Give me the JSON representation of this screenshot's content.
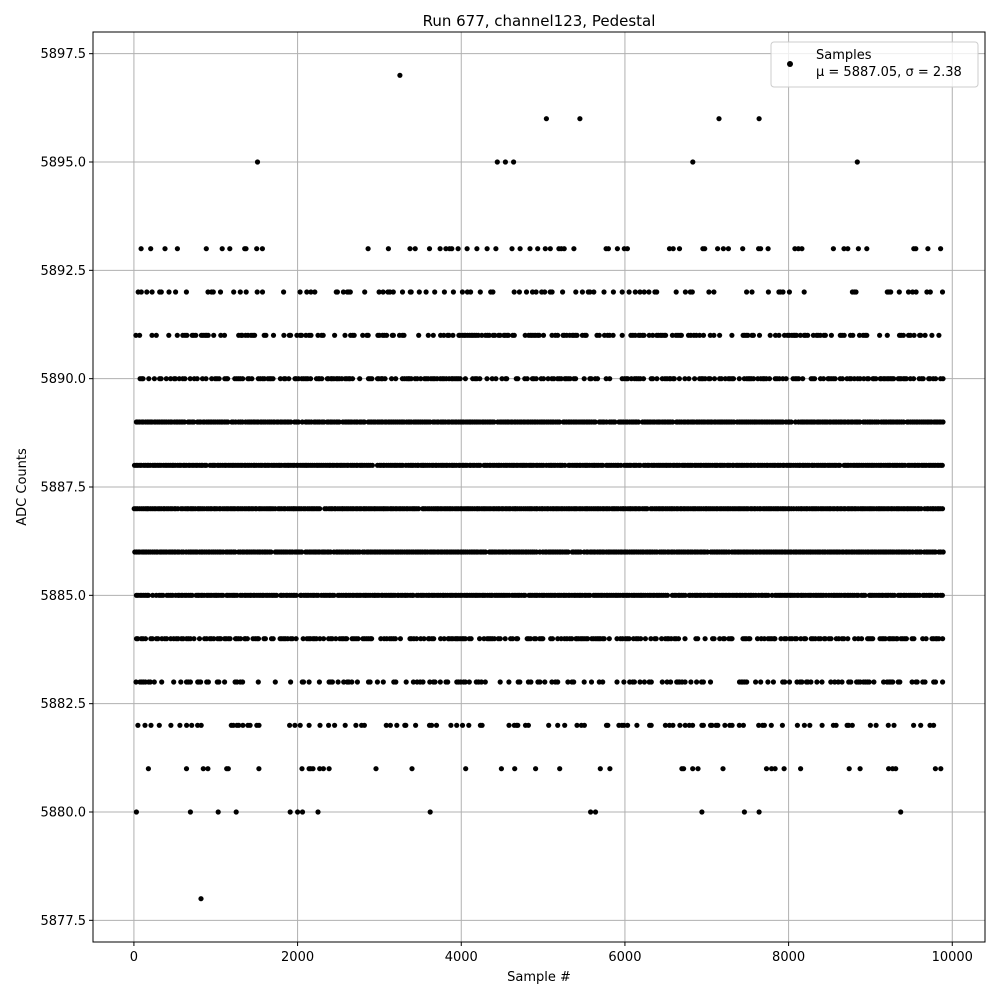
{
  "chart_data": {
    "type": "scatter",
    "title": "Run 677, channel123, Pedestal",
    "xlabel": "Sample #",
    "ylabel": "ADC Counts",
    "xlim": [
      -500,
      10400
    ],
    "ylim": [
      5877.0,
      5898.0
    ],
    "xticks": [
      0,
      2000,
      4000,
      6000,
      8000,
      10000
    ],
    "xtick_labels": [
      "0",
      "2000",
      "4000",
      "6000",
      "8000",
      "10000"
    ],
    "yticks": [
      5877.5,
      5880.0,
      5882.5,
      5885.0,
      5887.5,
      5890.0,
      5892.5,
      5895.0,
      5897.5
    ],
    "ytick_labels": [
      "5877.5",
      "5880.0",
      "5882.5",
      "5885.0",
      "5887.5",
      "5890.0",
      "5892.5",
      "5895.0",
      "5897.5"
    ],
    "grid": true,
    "legend_position": "top-right",
    "legend_line1": "Samples",
    "legend_line2": "μ = 5887.05, σ = 2.38",
    "marker_color": "#000000",
    "mean": 5887.05,
    "sigma": 2.38,
    "n_samples": 9900,
    "x_range": [
      0,
      9899
    ],
    "dense_levels": [
      5883,
      5884,
      5885,
      5886,
      5887,
      5888,
      5889,
      5890,
      5891
    ],
    "sparse_levels": [
      5880,
      5881,
      5882,
      5892,
      5893,
      5894
    ],
    "series": [
      {
        "name": "Samples",
        "outliers": [
          {
            "x": 820,
            "y": 5878
          },
          {
            "x": 30,
            "y": 5880
          },
          {
            "x": 690,
            "y": 5880
          },
          {
            "x": 1030,
            "y": 5880
          },
          {
            "x": 1250,
            "y": 5880
          },
          {
            "x": 1910,
            "y": 5880
          },
          {
            "x": 2000,
            "y": 5880
          },
          {
            "x": 2060,
            "y": 5880
          },
          {
            "x": 2250,
            "y": 5880
          },
          {
            "x": 3620,
            "y": 5880
          },
          {
            "x": 5580,
            "y": 5880
          },
          {
            "x": 5640,
            "y": 5880
          },
          {
            "x": 6940,
            "y": 5880
          },
          {
            "x": 7460,
            "y": 5880
          },
          {
            "x": 7640,
            "y": 5880
          },
          {
            "x": 9370,
            "y": 5880
          },
          {
            "x": 1510,
            "y": 5895
          },
          {
            "x": 4440,
            "y": 5895
          },
          {
            "x": 4540,
            "y": 5895
          },
          {
            "x": 4640,
            "y": 5895
          },
          {
            "x": 6830,
            "y": 5895
          },
          {
            "x": 8840,
            "y": 5895
          },
          {
            "x": 5040,
            "y": 5896
          },
          {
            "x": 5450,
            "y": 5896
          },
          {
            "x": 7150,
            "y": 5896
          },
          {
            "x": 7640,
            "y": 5896
          },
          {
            "x": 3250,
            "y": 5897
          }
        ]
      }
    ]
  }
}
